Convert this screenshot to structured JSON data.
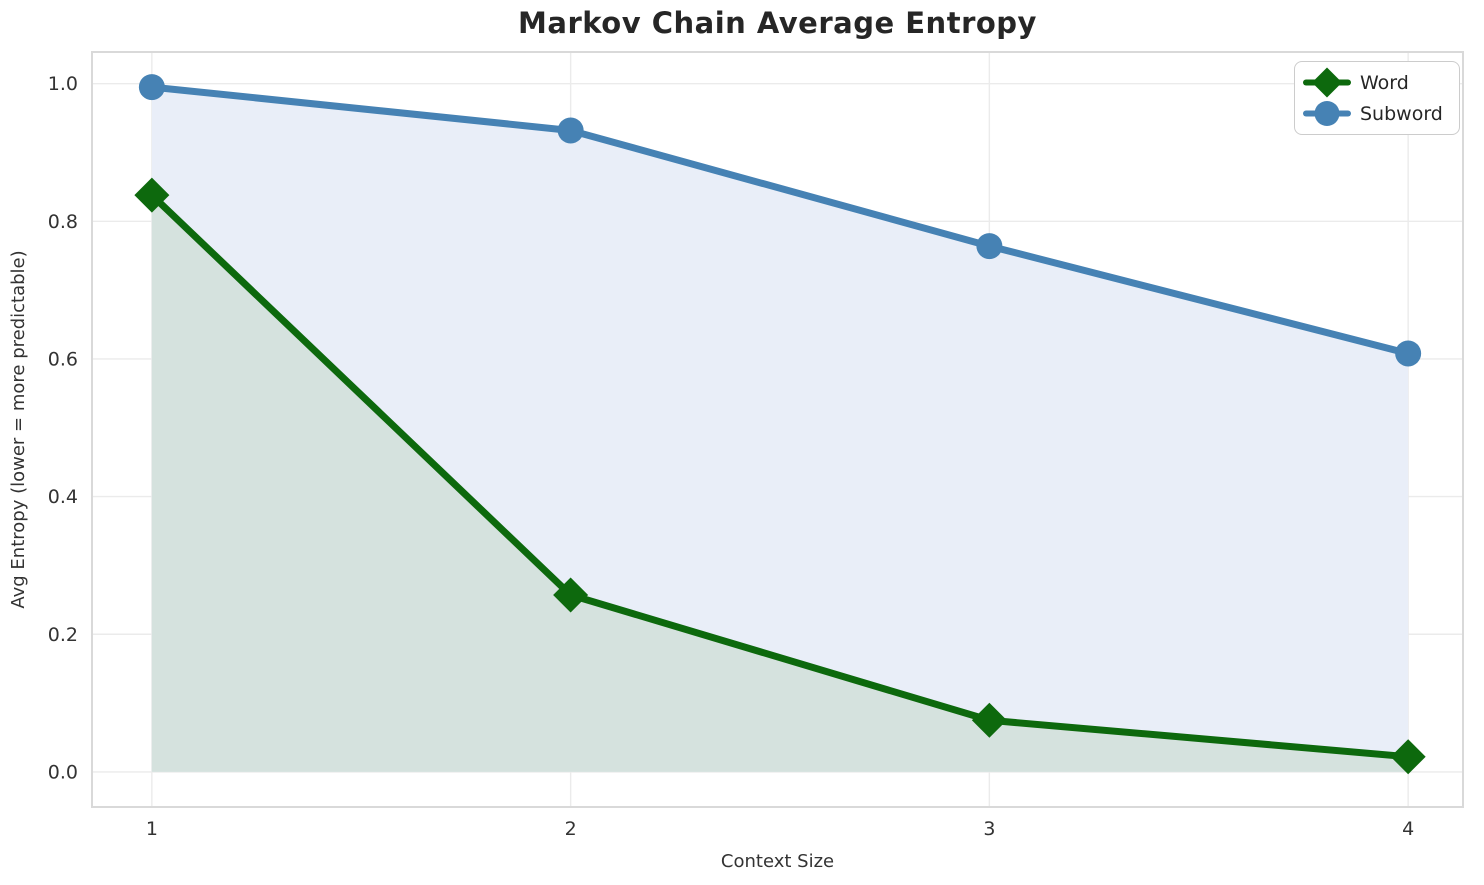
{
  "chart_data": {
    "type": "line",
    "title": "Markov Chain Average Entropy",
    "xlabel": "Context Size",
    "ylabel": "Avg Entropy (lower = more predictable)",
    "x": [
      1,
      2,
      3,
      4
    ],
    "xticks": [
      1,
      2,
      3,
      4
    ],
    "yticks": [
      0.0,
      0.2,
      0.4,
      0.6,
      0.8,
      1.0
    ],
    "xlim": [
      0.857,
      4.131
    ],
    "ylim": [
      -0.051,
      1.046
    ],
    "grid": true,
    "legend_position": "upper right",
    "fill_to_zero": true,
    "series": [
      {
        "name": "Word",
        "marker": "diamond",
        "color": "#0d690d",
        "area_color": "#d5e2de",
        "values": [
          0.838,
          0.257,
          0.075,
          0.022
        ]
      },
      {
        "name": "Subword",
        "marker": "circle",
        "color": "#4682b4",
        "area_color": "#e9eef8",
        "values": [
          0.995,
          0.932,
          0.764,
          0.608
        ]
      }
    ],
    "colors": {
      "grid": "#ebebeb",
      "spine": "#d9d9d9",
      "tick_text": "#333333",
      "title_text": "#262626"
    }
  }
}
